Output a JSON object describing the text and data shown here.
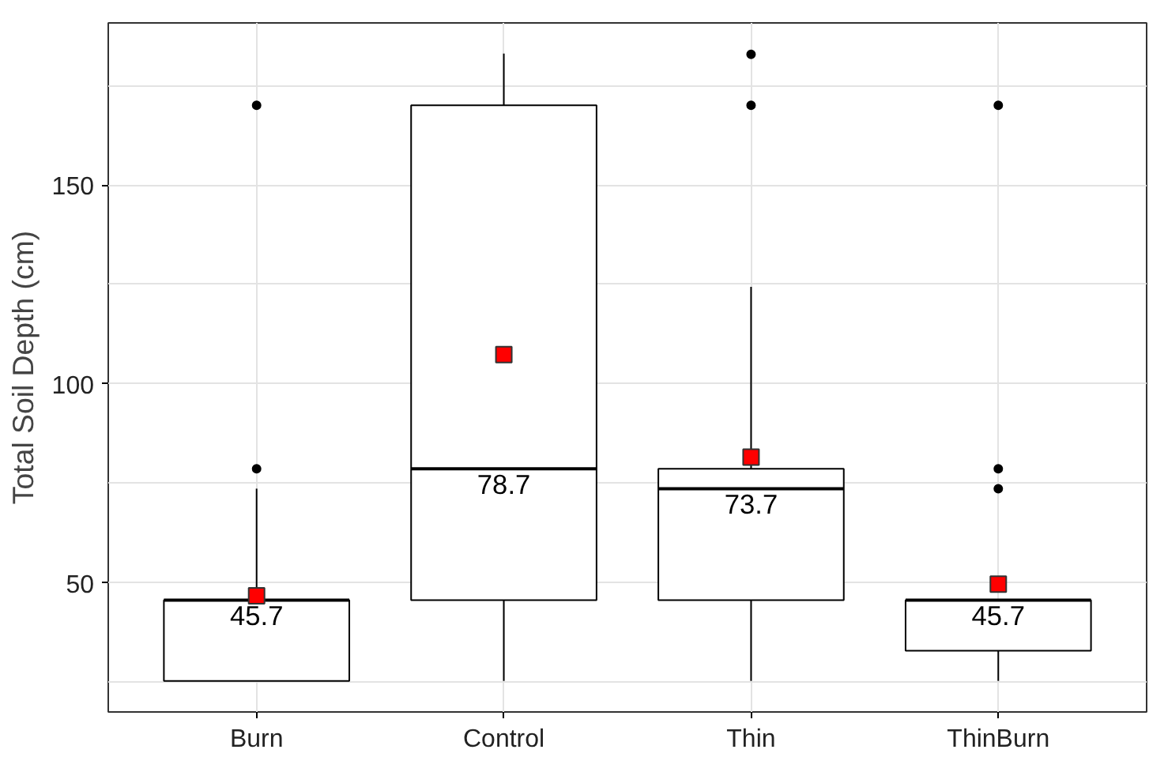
{
  "chart_data": {
    "type": "box",
    "ylabel": "Total Soil Depth (cm)",
    "categories": [
      "Burn",
      "Control",
      "Thin",
      "ThinBurn"
    ],
    "boxes": [
      {
        "low": 25.4,
        "q1": 25.4,
        "median": 45.7,
        "q3": 45.7,
        "high": 73.7,
        "mean": 46.8,
        "outliers": [
          78.7,
          170.0
        ]
      },
      {
        "low": 25.4,
        "q1": 45.7,
        "median": 78.7,
        "q3": 170.0,
        "high": 183.0,
        "mean": 107.4
      },
      {
        "low": 25.4,
        "q1": 45.7,
        "median": 73.7,
        "q3": 78.7,
        "high": 124.4,
        "mean": 81.6,
        "outliers": [
          170.0,
          182.8
        ]
      },
      {
        "low": 25.4,
        "q1": 33.0,
        "median": 45.7,
        "q3": 45.7,
        "high": 45.7,
        "mean": 49.7,
        "outliers": [
          73.7,
          78.7,
          170.0
        ]
      }
    ],
    "ylim": [
      17.6,
      190.7
    ],
    "yticks": [
      {
        "value": 25,
        "label": null
      },
      50,
      {
        "value": 75,
        "label": null
      },
      100,
      {
        "value": 125,
        "label": null
      },
      150,
      {
        "value": 175,
        "label": null
      }
    ],
    "grid": true,
    "annotations": [
      {
        "text": "45.7",
        "x": "Burn",
        "y": 45.7
      },
      {
        "text": "78.7",
        "x": "Control",
        "y": 78.7
      },
      {
        "text": "73.7",
        "x": "Thin",
        "y": 73.7
      },
      {
        "text": "45.7",
        "x": "ThinBurn",
        "y": 45.7
      }
    ]
  }
}
